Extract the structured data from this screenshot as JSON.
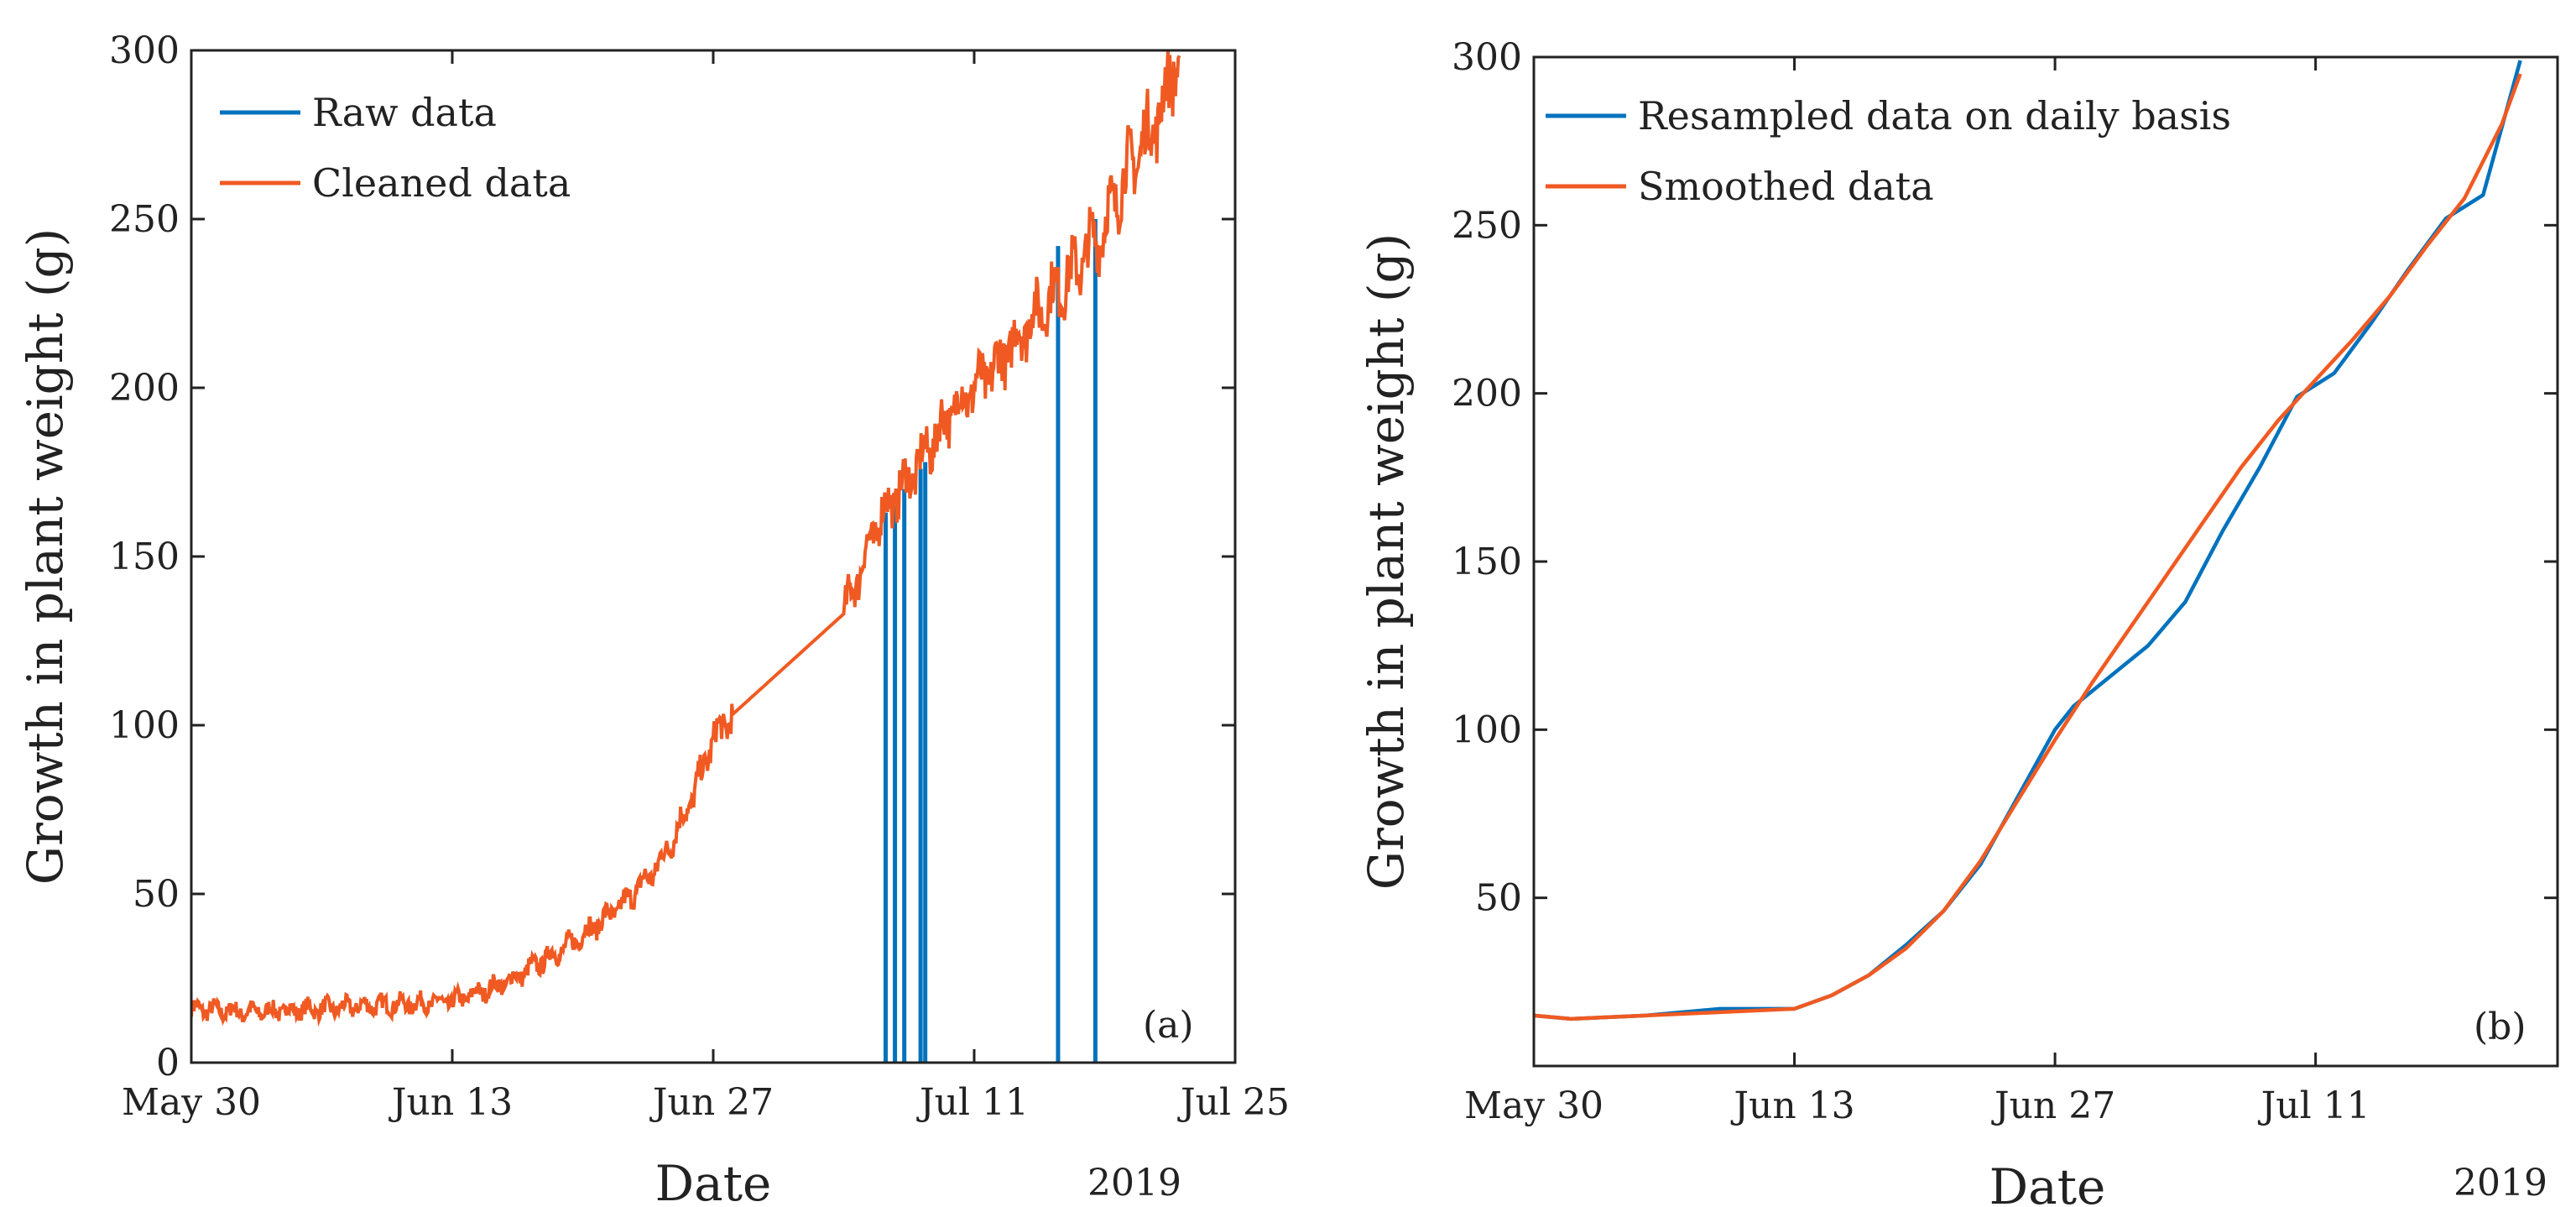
{
  "chart_data": [
    {
      "type": "line",
      "panel_label": "(a)",
      "xlabel": "Date",
      "ylabel": "Growth in plant weight (g)",
      "year_label": "2019",
      "xlim": [
        "2019-05-30",
        "2019-07-25"
      ],
      "ylim": [
        0,
        300
      ],
      "x_ticks": [
        "May 30",
        "Jun 13",
        "Jun 27",
        "Jul 11",
        "Jul 25"
      ],
      "y_ticks": [
        "0",
        "50",
        "100",
        "150",
        "200",
        "250",
        "300"
      ],
      "legend_position": "top-left",
      "grid": false,
      "colors": {
        "raw": "#0072BD",
        "cleaned": "#F05A22"
      },
      "series": [
        {
          "name": "Raw data",
          "color": "#0072BD",
          "style": "line-with-dropouts",
          "dropouts": [
            {
              "x": "2019-07-06 06:00",
              "y": 163
            },
            {
              "x": "2019-07-06 18:00",
              "y": 165
            },
            {
              "x": "2019-07-07 06:00",
              "y": 170
            },
            {
              "x": "2019-07-08 03:00",
              "y": 176
            },
            {
              "x": "2019-07-08 09:00",
              "y": 178
            },
            {
              "x": "2019-07-15 12:00",
              "y": 242
            },
            {
              "x": "2019-07-17 12:00",
              "y": 250
            }
          ]
        },
        {
          "name": "Cleaned data",
          "color": "#F05A22",
          "style": "noisy-line",
          "x": [
            "2019-05-30",
            "2019-06-02",
            "2019-06-06",
            "2019-06-09",
            "2019-06-13",
            "2019-06-16",
            "2019-06-19",
            "2019-06-22",
            "2019-06-24",
            "2019-06-25",
            "2019-06-26",
            "2019-06-27",
            "2019-06-28",
            "2019-07-01",
            "2019-07-04",
            "2019-07-05",
            "2019-07-06",
            "2019-07-08",
            "2019-07-10",
            "2019-07-12",
            "2019-07-14",
            "2019-07-16",
            "2019-07-18",
            "2019-07-19",
            "2019-07-21",
            "2019-07-22"
          ],
          "y": [
            16,
            15,
            16,
            17,
            18,
            24,
            34,
            46,
            58,
            68,
            80,
            96,
            103,
            118,
            133,
            148,
            162,
            177,
            195,
            205,
            220,
            232,
            248,
            262,
            282,
            300
          ]
        }
      ]
    },
    {
      "type": "line",
      "panel_label": "(b)",
      "xlabel": "Date",
      "ylabel": "Growth in plant weight (g)",
      "year_label": "2019",
      "xlim": [
        "2019-05-30",
        "2019-07-24"
      ],
      "ylim": [
        0,
        300
      ],
      "x_ticks": [
        "May 30",
        "Jun 13",
        "Jun 27",
        "Jul 11"
      ],
      "y_ticks": [
        "50",
        "100",
        "150",
        "200",
        "250",
        "300"
      ],
      "legend_position": "top-left",
      "grid": false,
      "colors": {
        "resampled": "#0072BD",
        "smoothed": "#F05A22"
      },
      "series": [
        {
          "name": "Resampled data on daily basis",
          "color": "#0072BD",
          "x": [
            "2019-05-30",
            "2019-06-01",
            "2019-06-05",
            "2019-06-09",
            "2019-06-13",
            "2019-06-15",
            "2019-06-17",
            "2019-06-19",
            "2019-06-21",
            "2019-06-23",
            "2019-06-25",
            "2019-06-27",
            "2019-06-28",
            "2019-07-02",
            "2019-07-04",
            "2019-07-06",
            "2019-07-08",
            "2019-07-10",
            "2019-07-12",
            "2019-07-14",
            "2019-07-16",
            "2019-07-18",
            "2019-07-20",
            "2019-07-22"
          ],
          "y": [
            15,
            14,
            15,
            17,
            17,
            21,
            27,
            36,
            46,
            60,
            80,
            100,
            107,
            125,
            138,
            159,
            178,
            199,
            206,
            221,
            237,
            252,
            259,
            299
          ]
        },
        {
          "name": "Smoothed data",
          "color": "#F05A22",
          "x": [
            "2019-05-30",
            "2019-06-01",
            "2019-06-05",
            "2019-06-09",
            "2019-06-13",
            "2019-06-15",
            "2019-06-17",
            "2019-06-19",
            "2019-06-21",
            "2019-06-23",
            "2019-06-25",
            "2019-06-27",
            "2019-06-29",
            "2019-07-01",
            "2019-07-03",
            "2019-07-05",
            "2019-07-07",
            "2019-07-09",
            "2019-07-11",
            "2019-07-13",
            "2019-07-15",
            "2019-07-17",
            "2019-07-19",
            "2019-07-21",
            "2019-07-22"
          ],
          "y": [
            15,
            14,
            15,
            16,
            17,
            21,
            27,
            35,
            46,
            61,
            79,
            97,
            114,
            130,
            146,
            162,
            178,
            192,
            204,
            216,
            229,
            244,
            258,
            280,
            295
          ]
        }
      ]
    }
  ]
}
